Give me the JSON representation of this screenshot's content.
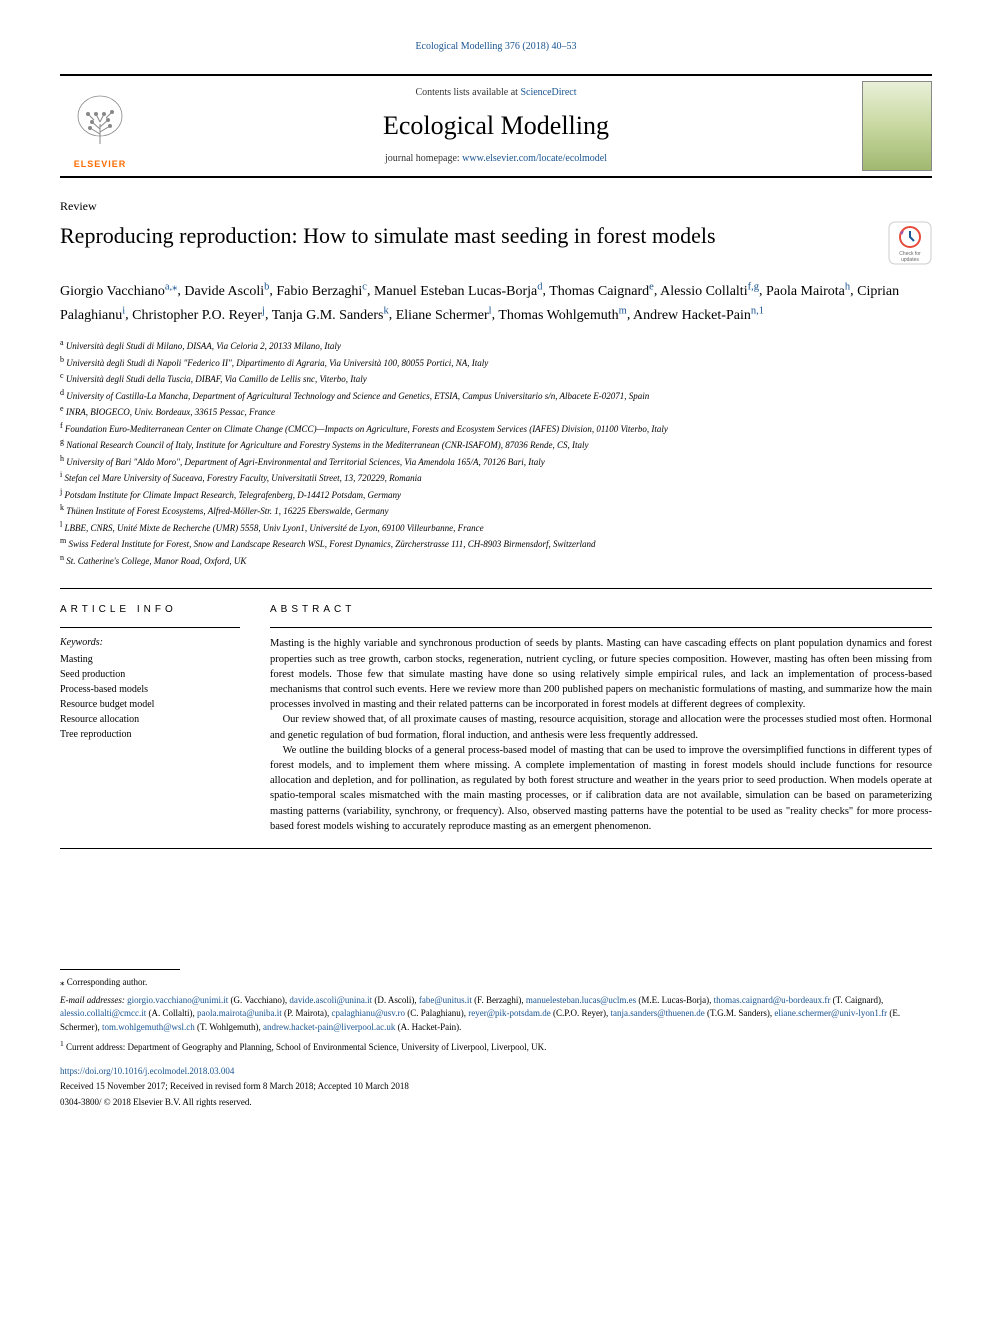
{
  "journal_ref": "Ecological Modelling 376 (2018) 40–53",
  "header": {
    "contents_prefix": "Contents lists available at ",
    "contents_link": "ScienceDirect",
    "journal_name": "Ecological Modelling",
    "homepage_prefix": "journal homepage: ",
    "homepage_link": "www.elsevier.com/locate/ecolmodel",
    "elsevier_label": "ELSEVIER"
  },
  "article_type": "Review",
  "title": "Reproducing reproduction: How to simulate mast seeding in forest models",
  "check_updates_label": "Check for updates",
  "authors": [
    {
      "name": "Giorgio Vacchiano",
      "sup": "a,⁎"
    },
    {
      "name": "Davide Ascoli",
      "sup": "b"
    },
    {
      "name": "Fabio Berzaghi",
      "sup": "c"
    },
    {
      "name": "Manuel Esteban Lucas-Borja",
      "sup": "d"
    },
    {
      "name": "Thomas Caignard",
      "sup": "e"
    },
    {
      "name": "Alessio Collalti",
      "sup": "f,g"
    },
    {
      "name": "Paola Mairota",
      "sup": "h"
    },
    {
      "name": "Ciprian Palaghianu",
      "sup": "i"
    },
    {
      "name": "Christopher P.O. Reyer",
      "sup": "j"
    },
    {
      "name": "Tanja G.M. Sanders",
      "sup": "k"
    },
    {
      "name": "Eliane Schermer",
      "sup": "l"
    },
    {
      "name": "Thomas Wohlgemuth",
      "sup": "m"
    },
    {
      "name": "Andrew Hacket-Pain",
      "sup": "n,1"
    }
  ],
  "affiliations": [
    {
      "key": "a",
      "text": "Università degli Studi di Milano, DISAA, Via Celoria 2, 20133 Milano, Italy"
    },
    {
      "key": "b",
      "text": "Università degli Studi di Napoli \"Federico II\", Dipartimento di Agraria, Via Università 100, 80055 Portici, NA, Italy"
    },
    {
      "key": "c",
      "text": "Università degli Studi della Tuscia, DIBAF, Via Camillo de Lellis snc, Viterbo, Italy"
    },
    {
      "key": "d",
      "text": "University of Castilla-La Mancha, Department of Agricultural Technology and Science and Genetics, ETSIA, Campus Universitario s/n, Albacete E-02071, Spain"
    },
    {
      "key": "e",
      "text": "INRA, BIOGECO, Univ. Bordeaux, 33615 Pessac, France"
    },
    {
      "key": "f",
      "text": "Foundation Euro-Mediterranean Center on Climate Change (CMCC)—Impacts on Agriculture, Forests and Ecosystem Services (IAFES) Division, 01100 Viterbo, Italy"
    },
    {
      "key": "g",
      "text": "National Research Council of Italy, Institute for Agriculture and Forestry Systems in the Mediterranean (CNR-ISAFOM), 87036 Rende, CS, Italy"
    },
    {
      "key": "h",
      "text": "University of Bari \"Aldo Moro\", Department of Agri-Environmental and Territorial Sciences, Via Amendola 165/A, 70126 Bari, Italy"
    },
    {
      "key": "i",
      "text": "Stefan cel Mare University of Suceava, Forestry Faculty, Universitatii Street, 13, 720229, Romania"
    },
    {
      "key": "j",
      "text": "Potsdam Institute for Climate Impact Research, Telegrafenberg, D-14412 Potsdam, Germany"
    },
    {
      "key": "k",
      "text": "Thünen Institute of Forest Ecosystems, Alfred-Möller-Str. 1, 16225 Eberswalde, Germany"
    },
    {
      "key": "l",
      "text": "LBBE, CNRS, Unité Mixte de Recherche (UMR) 5558, Univ Lyon1, Université de Lyon, 69100 Villeurbanne, France"
    },
    {
      "key": "m",
      "text": "Swiss Federal Institute for Forest, Snow and Landscape Research WSL, Forest Dynamics, Zürcherstrasse 111, CH-8903 Birmensdorf, Switzerland"
    },
    {
      "key": "n",
      "text": "St. Catherine's College, Manor Road, Oxford, UK"
    }
  ],
  "article_info_heading": "ARTICLE INFO",
  "abstract_heading": "ABSTRACT",
  "keywords_label": "Keywords:",
  "keywords": [
    "Masting",
    "Seed production",
    "Process-based models",
    "Resource budget model",
    "Resource allocation",
    "Tree reproduction"
  ],
  "abstract_paras": [
    "Masting is the highly variable and synchronous production of seeds by plants. Masting can have cascading effects on plant population dynamics and forest properties such as tree growth, carbon stocks, regeneration, nutrient cycling, or future species composition. However, masting has often been missing from forest models. Those few that simulate masting have done so using relatively simple empirical rules, and lack an implementation of process-based mechanisms that control such events. Here we review more than 200 published papers on mechanistic formulations of masting, and summarize how the main processes involved in masting and their related patterns can be incorporated in forest models at different degrees of complexity.",
    "Our review showed that, of all proximate causes of masting, resource acquisition, storage and allocation were the processes studied most often. Hormonal and genetic regulation of bud formation, floral induction, and anthesis were less frequently addressed.",
    "We outline the building blocks of a general process-based model of masting that can be used to improve the oversimplified functions in different types of forest models, and to implement them where missing. A complete implementation of masting in forest models should include functions for resource allocation and depletion, and for pollination, as regulated by both forest structure and weather in the years prior to seed production. When models operate at spatio-temporal scales mismatched with the main masting processes, or if calibration data are not available, simulation can be based on parameterizing masting patterns (variability, synchrony, or frequency). Also, observed masting patterns have the potential to be used as \"reality checks\" for more process-based forest models wishing to accurately reproduce masting as an emergent phenomenon."
  ],
  "footer": {
    "corresponding": "⁎ Corresponding author.",
    "email_label": "E-mail addresses: ",
    "emails": [
      {
        "email": "giorgio.vacchiano@unimi.it",
        "name": "(G. Vacchiano)"
      },
      {
        "email": "davide.ascoli@unina.it",
        "name": "(D. Ascoli)"
      },
      {
        "email": "fabe@unitus.it",
        "name": "(F. Berzaghi)"
      },
      {
        "email": "manuelesteban.lucas@uclm.es",
        "name": "(M.E. Lucas-Borja)"
      },
      {
        "email": "thomas.caignard@u-bordeaux.fr",
        "name": "(T. Caignard)"
      },
      {
        "email": "alessio.collalti@cmcc.it",
        "name": "(A. Collalti)"
      },
      {
        "email": "paola.mairota@uniba.it",
        "name": "(P. Mairota)"
      },
      {
        "email": "cpalaghianu@usv.ro",
        "name": "(C. Palaghianu)"
      },
      {
        "email": "reyer@pik-potsdam.de",
        "name": "(C.P.O. Reyer)"
      },
      {
        "email": "tanja.sanders@thuenen.de",
        "name": "(T.G.M. Sanders)"
      },
      {
        "email": "eliane.schermer@univ-lyon1.fr",
        "name": "(E. Schermer)"
      },
      {
        "email": "tom.wohlgemuth@wsl.ch",
        "name": "(T. Wohlgemuth)"
      },
      {
        "email": "andrew.hacket-pain@liverpool.ac.uk",
        "name": "(A. Hacket-Pain)"
      }
    ],
    "current_address": "Current address: Department of Geography and Planning, School of Environmental Science, University of Liverpool, Liverpool, UK.",
    "current_address_sup": "1",
    "doi": "https://doi.org/10.1016/j.ecolmodel.2018.03.004",
    "received": "Received 15 November 2017; Received in revised form 8 March 2018; Accepted 10 March 2018",
    "copyright": "0304-3800/ © 2018 Elsevier B.V. All rights reserved."
  },
  "colors": {
    "link": "#1a5490",
    "elsevier_orange": "#ff6b00",
    "cover_gradient_top": "#e8f0d8",
    "cover_gradient_mid": "#c8d8a0",
    "cover_gradient_bot": "#a0b870"
  }
}
